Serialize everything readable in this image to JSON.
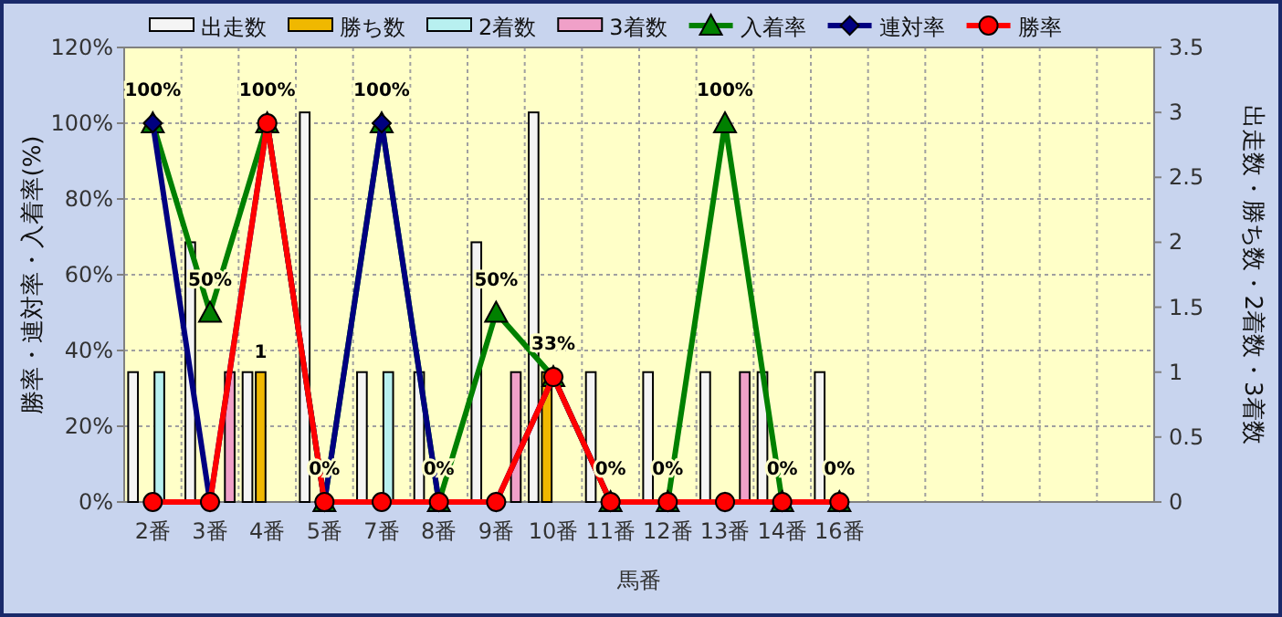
{
  "chart_data": {
    "type": "bar",
    "xlabel": "馬番",
    "ylabel": "勝率・連対率・入着率(%)",
    "y2label": "出走数・勝ち数・2着数・3着数",
    "categories": [
      "2番",
      "3番",
      "4番",
      "5番",
      "7番",
      "8番",
      "9番",
      "10番",
      "11番",
      "12番",
      "13番",
      "14番",
      "16番",
      null,
      null,
      null,
      null,
      null
    ],
    "ylim": [
      0,
      120
    ],
    "yticks": [
      {
        "value": 0,
        "label": "0%"
      },
      {
        "value": 20,
        "label": "20%"
      },
      {
        "value": 40,
        "label": "40%"
      },
      {
        "value": 60,
        "label": "60%"
      },
      {
        "value": 80,
        "label": "80%"
      },
      {
        "value": 100,
        "label": "100%"
      },
      {
        "value": 120,
        "label": "120%"
      }
    ],
    "y2lim": [
      0,
      3.5
    ],
    "y2ticks": [
      0,
      0.5,
      1,
      1.5,
      2,
      2.5,
      3,
      3.5
    ],
    "grid": true,
    "legend": "top",
    "series": [
      {
        "name": "出走数",
        "axis": "y2",
        "color": "#f4f4f4",
        "values": [
          1,
          2,
          1,
          3,
          1,
          1,
          2,
          3,
          1,
          1,
          1,
          1,
          1,
          null,
          null,
          null,
          null,
          null
        ]
      },
      {
        "name": "勝ち数",
        "axis": "y2",
        "color": "#f0b800",
        "values": [
          0,
          0,
          1,
          0,
          0,
          0,
          0,
          1,
          0,
          0,
          0,
          0,
          0,
          null,
          null,
          null,
          null,
          null
        ],
        "value_labels": [
          null,
          null,
          "1",
          null,
          null,
          null,
          null,
          null,
          null,
          null,
          null,
          null,
          null,
          null,
          null,
          null,
          null,
          null
        ]
      },
      {
        "name": "2着数",
        "axis": "y2",
        "color": "#b8f0f0",
        "values": [
          1,
          0,
          0,
          0,
          1,
          0,
          0,
          0,
          0,
          0,
          0,
          0,
          0,
          null,
          null,
          null,
          null,
          null
        ]
      },
      {
        "name": "3着数",
        "axis": "y2",
        "color": "#f0a0c8",
        "values": [
          0,
          1,
          0,
          0,
          0,
          0,
          1,
          0,
          0,
          0,
          1,
          0,
          0,
          null,
          null,
          null,
          null,
          null
        ]
      },
      {
        "name": "入着率",
        "type": "line",
        "marker": "triangle",
        "color": "#008000",
        "values": [
          100,
          50,
          100,
          0,
          100,
          0,
          50,
          33,
          0,
          0,
          100,
          0,
          0,
          null,
          null,
          null,
          null,
          null
        ],
        "value_labels": [
          "100%",
          "50%",
          "100%",
          "0%",
          "100%",
          "0%",
          "50%",
          "33%",
          "0%",
          "0%",
          "100%",
          "0%",
          "0%",
          null,
          null,
          null,
          null,
          null
        ]
      },
      {
        "name": "連対率",
        "type": "line",
        "marker": "diamond",
        "color": "#000080",
        "values": [
          100,
          0,
          100,
          0,
          100,
          0,
          0,
          33,
          0,
          0,
          0,
          0,
          0,
          null,
          null,
          null,
          null,
          null
        ]
      },
      {
        "name": "勝率",
        "type": "line",
        "marker": "circle",
        "color": "#ff0000",
        "values": [
          0,
          0,
          100,
          0,
          0,
          0,
          0,
          33,
          0,
          0,
          0,
          0,
          0,
          null,
          null,
          null,
          null,
          null
        ]
      }
    ]
  }
}
